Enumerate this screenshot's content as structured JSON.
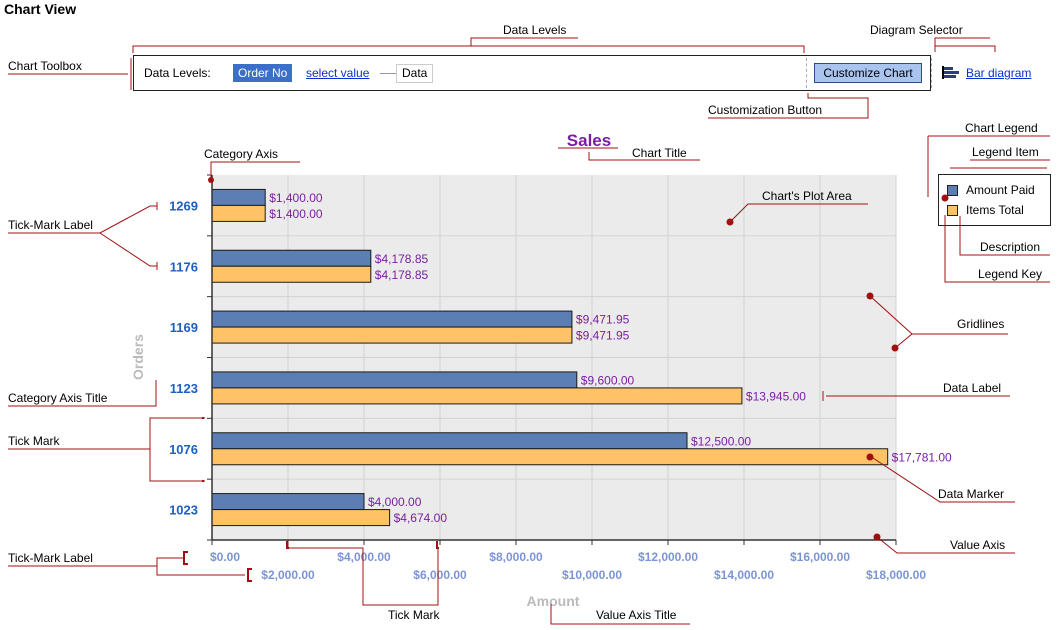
{
  "page": {
    "title": "Chart View"
  },
  "toolbox": {
    "data_levels_label": "Data Levels:",
    "level_active": "Order No",
    "level_select": "select value",
    "level_data": "Data",
    "customize_button": "Customize Chart",
    "diagram_link": "Bar diagram"
  },
  "legend": {
    "items": [
      {
        "label": "Amount Paid",
        "color": "#5b7fb5"
      },
      {
        "label": "Items Total",
        "color": "#ffc266"
      }
    ]
  },
  "callouts": {
    "data_levels": "Data Levels",
    "diagram_selector": "Diagram Selector",
    "chart_toolbox": "Chart Toolbox",
    "customization_button": "Customization Button",
    "chart_legend": "Chart Legend",
    "legend_item": "Legend Item",
    "category_axis": "Category Axis",
    "chart_title": "Chart Title",
    "plot_area": "Chart's Plot Area",
    "tick_mark_label": "Tick-Mark Label",
    "gridlines": "Gridlines",
    "description": "Description",
    "legend_key": "Legend Key",
    "category_axis_title": "Category Axis Title",
    "data_label": "Data Label",
    "tick_mark": "Tick Mark",
    "data_marker": "Data Marker",
    "value_axis": "Value Axis",
    "value_axis_title": "Value Axis Title"
  },
  "chart_data": {
    "type": "bar",
    "orientation": "horizontal",
    "title": "Sales",
    "xlabel": "Amount",
    "ylabel": "Orders",
    "categories": [
      "1269",
      "1176",
      "1169",
      "1123",
      "1076",
      "1023"
    ],
    "series": [
      {
        "name": "Amount Paid",
        "color": "#5b7fb5",
        "values": [
          1400,
          4178.85,
          9471.95,
          9600,
          12500,
          4000
        ],
        "labels": [
          "$1,400.00",
          "$4,178.85",
          "$9,471.95",
          "$9,600.00",
          "$12,500.00",
          "$4,000.00"
        ]
      },
      {
        "name": "Items Total",
        "color": "#ffc266",
        "values": [
          1400,
          4178.85,
          9471.95,
          13945,
          17781,
          4674
        ],
        "labels": [
          "$1,400.00",
          "$4,178.85",
          "$9,471.95",
          "$13,945.00",
          "$17,781.00",
          "$4,674.00"
        ]
      }
    ],
    "xlim": [
      0,
      18000
    ],
    "xticks": [
      0,
      2000,
      4000,
      6000,
      8000,
      10000,
      12000,
      14000,
      16000,
      18000
    ],
    "xtick_labels": [
      "$0.00",
      "$2,000.00",
      "$4,000.00",
      "$6,000.00",
      "$8,000.00",
      "$10,000.00",
      "$12,000.00",
      "$14,000.00",
      "$16,000.00",
      "$18,000.00"
    ],
    "grid": true,
    "legend_position": "right",
    "colors": {
      "title": "#7a1fa2",
      "category_labels": "#1f5fbf",
      "tick_labels": "#7b94d6",
      "data_labels": "#7a1fa2",
      "axis_title": "#bbbbbb",
      "annotation": "#a01010",
      "plot_background": "#ebebeb"
    }
  }
}
